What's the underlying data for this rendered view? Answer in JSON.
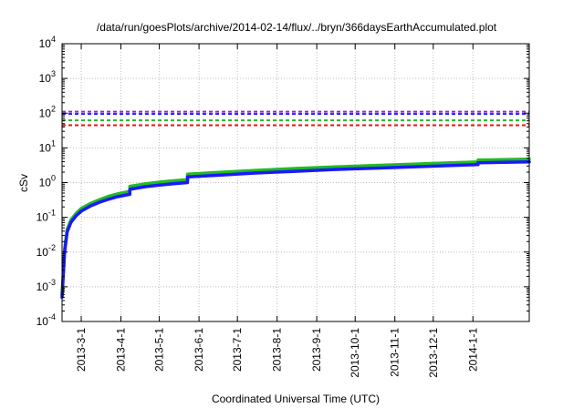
{
  "chart_data": {
    "type": "line",
    "title": "/data/run/goesPlots/archive/2014-02-14/flux/../bryn/366daysEarthAccumulated.plot",
    "xlabel": "Coordinated Universal Time (UTC)",
    "ylabel": "cSv",
    "yscale": "log",
    "grid": true,
    "x_range": [
      "2013-02-14",
      "2014-02-14"
    ],
    "ylim": [
      0.0001,
      10000
    ],
    "x_ticks": [
      "2013-3-1",
      "2013-4-1",
      "2013-5-1",
      "2013-6-1",
      "2013-7-1",
      "2013-8-1",
      "2013-9-1",
      "2013-10-1",
      "2013-11-1",
      "2013-12-1",
      "2014-1-1"
    ],
    "y_ticks": [
      {
        "value": 0.0001,
        "base": "10",
        "exp": "-4"
      },
      {
        "value": 0.001,
        "base": "10",
        "exp": "-3"
      },
      {
        "value": 0.01,
        "base": "10",
        "exp": "-2"
      },
      {
        "value": 0.1,
        "base": "10",
        "exp": "-1"
      },
      {
        "value": 1,
        "base": "10",
        "exp": "0"
      },
      {
        "value": 10,
        "base": "10",
        "exp": "1"
      },
      {
        "value": 100,
        "base": "10",
        "exp": "2"
      },
      {
        "value": 1000,
        "base": "10",
        "exp": "3"
      },
      {
        "value": 10000,
        "base": "10",
        "exp": "4"
      }
    ],
    "thresholds": [
      {
        "value": 110,
        "color": "#8a2be2"
      },
      {
        "value": 95,
        "color": "#1a1aff"
      },
      {
        "value": 62,
        "color": "#22bb22"
      },
      {
        "value": 45,
        "color": "#ee1111"
      }
    ],
    "series": [
      {
        "color": "#22bb22",
        "x": [
          "2013-02-14",
          "2013-02-16",
          "2013-02-18",
          "2013-02-21",
          "2013-02-25",
          "2013-03-01",
          "2013-03-08",
          "2013-03-15",
          "2013-03-22",
          "2013-03-29",
          "2013-04-05",
          "2013-04-08",
          "2013-04-08",
          "2013-04-20",
          "2013-05-01",
          "2013-05-12",
          "2013-05-23",
          "2013-05-23",
          "2013-06-15",
          "2013-07-15",
          "2013-08-15",
          "2013-09-15",
          "2013-10-15",
          "2013-11-15",
          "2013-12-15",
          "2014-01-05",
          "2014-01-05",
          "2014-02-14"
        ],
        "y": [
          0.0006,
          0.012,
          0.045,
          0.085,
          0.13,
          0.18,
          0.25,
          0.32,
          0.4,
          0.47,
          0.53,
          0.56,
          0.78,
          0.92,
          1.03,
          1.13,
          1.22,
          1.75,
          1.95,
          2.25,
          2.55,
          2.85,
          3.1,
          3.4,
          3.7,
          3.95,
          4.45,
          4.75
        ]
      },
      {
        "color": "#1a1aff",
        "x": [
          "2013-02-14",
          "2013-02-16",
          "2013-02-18",
          "2013-02-21",
          "2013-02-25",
          "2013-03-01",
          "2013-03-08",
          "2013-03-15",
          "2013-03-22",
          "2013-03-29",
          "2013-04-05",
          "2013-04-08",
          "2013-04-08",
          "2013-04-20",
          "2013-05-01",
          "2013-05-12",
          "2013-05-23",
          "2013-05-23",
          "2013-06-15",
          "2013-07-15",
          "2013-08-15",
          "2013-09-15",
          "2013-10-15",
          "2013-11-15",
          "2013-12-15",
          "2014-01-05",
          "2014-01-05",
          "2014-02-14"
        ],
        "y": [
          0.0005,
          0.01,
          0.038,
          0.072,
          0.11,
          0.15,
          0.21,
          0.27,
          0.33,
          0.39,
          0.44,
          0.46,
          0.64,
          0.76,
          0.85,
          0.93,
          1.0,
          1.45,
          1.62,
          1.88,
          2.12,
          2.38,
          2.6,
          2.85,
          3.1,
          3.3,
          3.7,
          3.95
        ]
      }
    ]
  }
}
